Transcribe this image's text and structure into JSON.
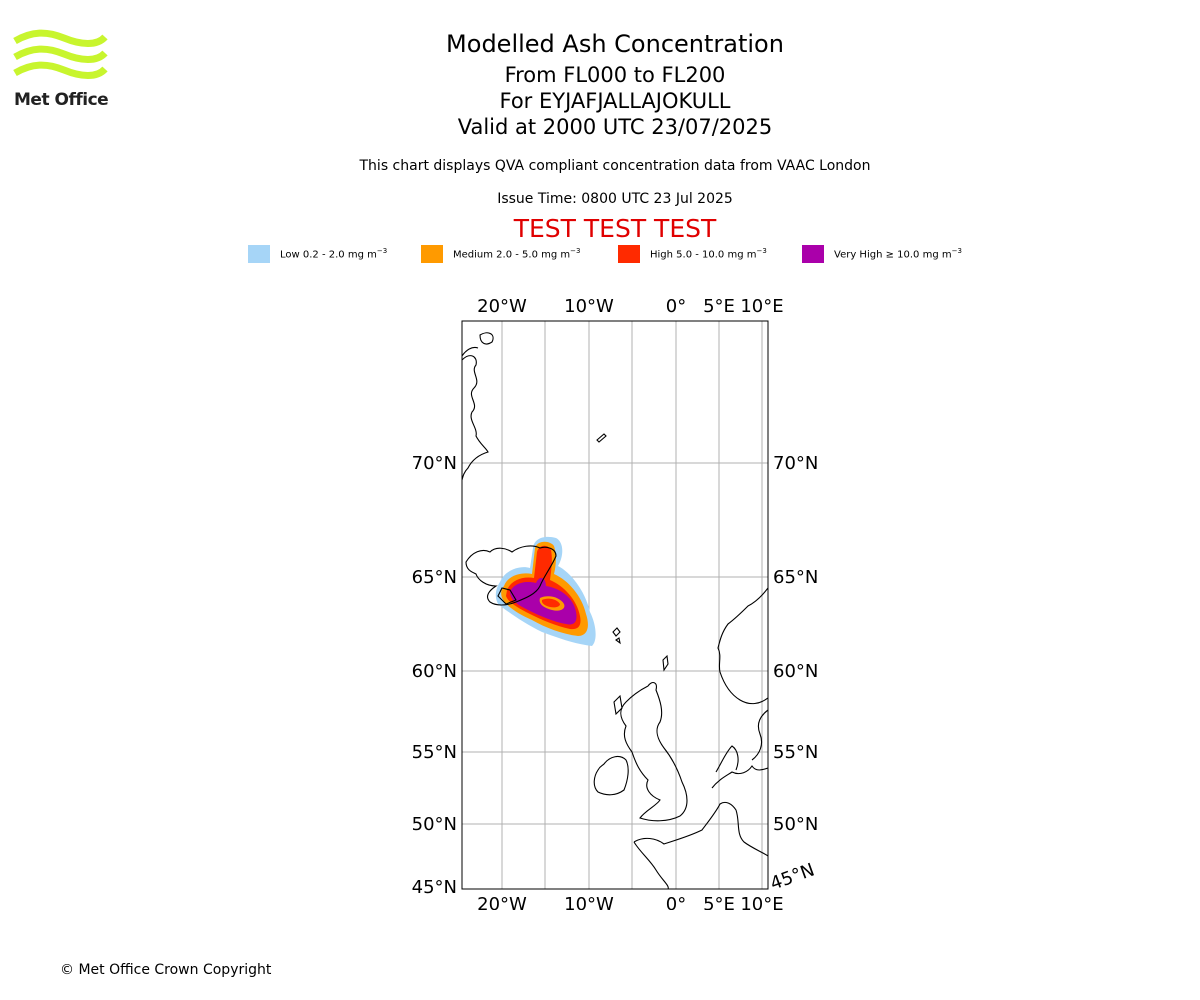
{
  "logo": {
    "text": "Met Office"
  },
  "title": {
    "line1": "Modelled Ash Concentration",
    "line2": "From FL000 to FL200",
    "line3": "For EYJAFJALLAJOKULL",
    "line4": "Valid at 2000 UTC 23/07/2025"
  },
  "description": "This chart displays QVA compliant concentration data from VAAC London",
  "issue_time": "Issue Time: 0800 UTC 23 Jul 2025",
  "test_banner": "TEST TEST TEST",
  "legend": [
    {
      "label": "Low 0.2 - 2.0 mg m",
      "color": "#a6d5f7"
    },
    {
      "label": "Medium 2.0 - 5.0 mg m",
      "color": "#ff9a00"
    },
    {
      "label": "High 5.0 - 10.0 mg m",
      "color": "#ff2a00"
    },
    {
      "label": "Very High ≥ 10.0 mg m",
      "color": "#aa00aa"
    }
  ],
  "legend_unit_exponent": "−3",
  "map": {
    "lon_labels": [
      "20°W",
      "10°W",
      "0°",
      "5°E",
      "10°E"
    ],
    "lat_labels": [
      "70°N",
      "65°N",
      "60°N",
      "55°N",
      "50°N",
      "45°N"
    ],
    "lat_label_right_bottom": "45°N"
  },
  "copyright": "© Met Office Crown Copyright"
}
